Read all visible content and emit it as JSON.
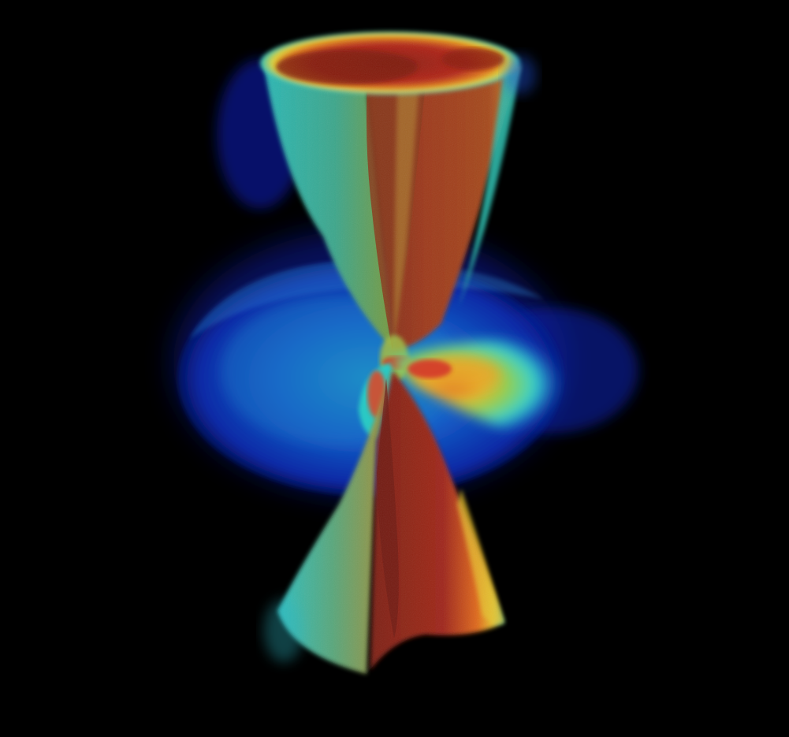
{
  "scene": {
    "subject": "volume-rendered-hourglass-jet-with-disk",
    "colors": {
      "background": "#000000",
      "deep_blue": "#0a1a9a",
      "mid_blue": "#1346c4",
      "cyan": "#27c7c2",
      "teal": "#2aa596",
      "green": "#63b34a",
      "yellow": "#e3d232",
      "orange": "#e07a1f",
      "red": "#b3231a",
      "dark_red": "#6e1a12"
    }
  }
}
